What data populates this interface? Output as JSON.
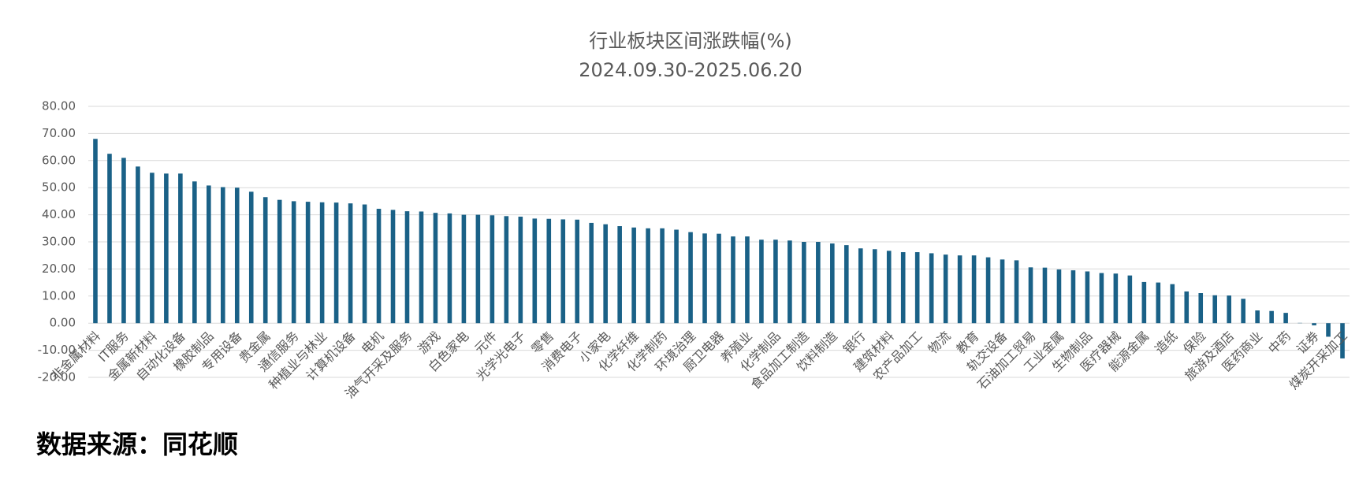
{
  "chart_data": {
    "type": "bar",
    "title": "行业板块区间涨跌幅(%)",
    "subtitle": "2024.09.30-2025.06.20",
    "categories": [
      "非金属材料",
      null,
      "IT服务",
      null,
      "金属新材料",
      null,
      "自动化设备",
      null,
      "橡胶制品",
      null,
      "专用设备",
      null,
      "贵金属",
      null,
      "通信服务",
      null,
      "种植业与林业",
      null,
      "计算机设备",
      null,
      "电机",
      null,
      "油气开采及服务",
      null,
      "游戏",
      null,
      "白色家电",
      null,
      "元件",
      null,
      "光学光电子",
      null,
      "零售",
      null,
      "消费电子",
      null,
      "小家电",
      null,
      "化学纤维",
      null,
      "化学制药",
      null,
      "环境治理",
      null,
      "厨卫电器",
      null,
      "养殖业",
      null,
      "化学制品",
      null,
      "食品加工制造",
      null,
      "饮料制造",
      null,
      "银行",
      null,
      "建筑材料",
      null,
      "农产品加工",
      null,
      "物流",
      null,
      "教育",
      null,
      "轨交设备",
      null,
      "石油加工贸易",
      null,
      "工业金属",
      null,
      "生物制品",
      null,
      "医疗器械",
      null,
      "能源金属",
      null,
      "造纸",
      null,
      "保险",
      null,
      "旅游及酒店",
      null,
      "医药商业",
      null,
      "中药",
      null,
      "证券",
      null,
      "煤炭开采加工"
    ],
    "values": [
      68,
      62.5,
      61,
      57.8,
      55.5,
      55.2,
      55.2,
      52.3,
      50.8,
      50.2,
      50,
      48.5,
      46.5,
      45.5,
      45,
      44.8,
      44.6,
      44.5,
      44.2,
      43.8,
      42.2,
      41.8,
      41.3,
      41.2,
      40.7,
      40.5,
      40,
      40,
      39.8,
      39.5,
      39.3,
      38.6,
      38.5,
      38.3,
      38.2,
      37,
      36.5,
      35.8,
      35.3,
      35,
      35,
      34.5,
      33.6,
      33.1,
      33,
      32,
      32,
      30.8,
      30.8,
      30.5,
      30,
      30,
      29.4,
      28.8,
      27.6,
      27.3,
      26.7,
      26.2,
      26.2,
      25.8,
      25.3,
      25,
      25,
      24.3,
      23.5,
      23.2,
      20.6,
      20.5,
      19.8,
      19.5,
      19.1,
      18.5,
      18.3,
      17.6,
      15.2,
      15,
      14.4,
      11.7,
      11.1,
      10.3,
      10.2,
      9,
      4.7,
      4.5,
      3.8,
      0.1,
      -0.8,
      -5,
      -13
    ],
    "color": "#1a6187",
    "ylim": [
      -20,
      80
    ],
    "yticks": [
      {
        "value": -20,
        "label": "-20.00"
      },
      {
        "value": -10,
        "label": "-10.00"
      },
      {
        "value": 0,
        "label": "0.00"
      },
      {
        "value": 10,
        "label": "10.00"
      },
      {
        "value": 20,
        "label": "20.00"
      },
      {
        "value": 30,
        "label": "30.00"
      },
      {
        "value": 40,
        "label": "40.00"
      },
      {
        "value": 50,
        "label": "50.00"
      },
      {
        "value": 60,
        "label": "60.00"
      },
      {
        "value": 70,
        "label": "70.00"
      },
      {
        "value": 80,
        "label": "80.00"
      }
    ],
    "grid": true,
    "source": "数据来源：同花顺"
  }
}
